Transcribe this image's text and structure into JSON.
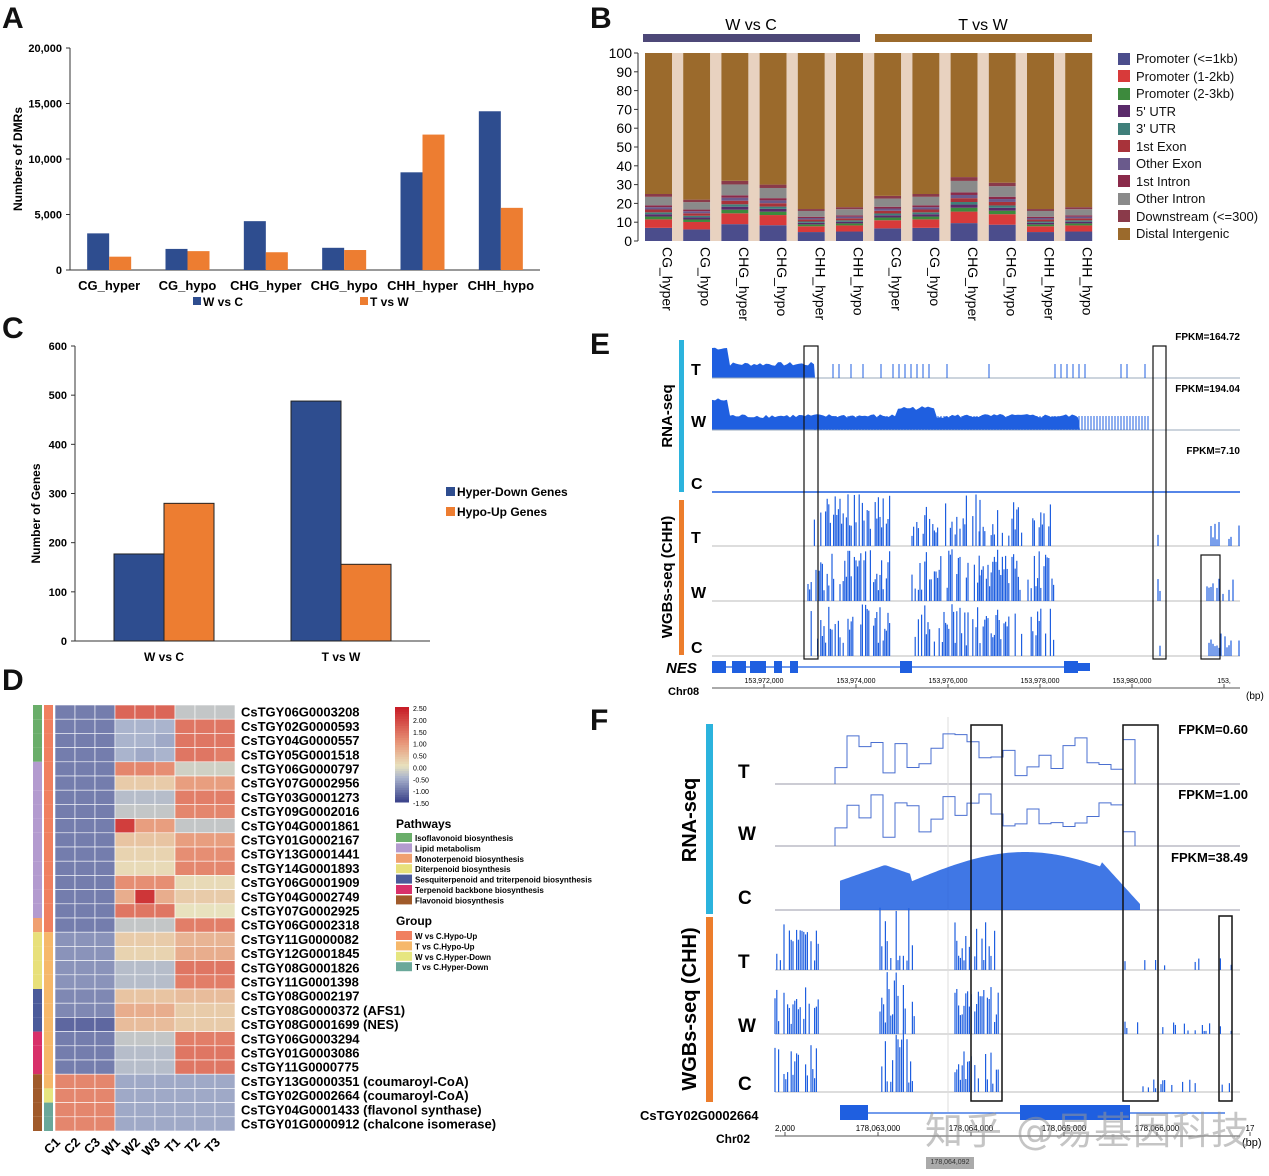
{
  "panels": {
    "A": "A",
    "B": "B",
    "C": "C",
    "D": "D",
    "E": "E",
    "F": "F"
  },
  "colors": {
    "blue": "#2e4d8f",
    "orange": "#ed7d31",
    "track_blue": "#1f5fe0",
    "rna_bar": "#2bb3dd",
    "wgbs_bar": "#ec7d2c"
  },
  "chart_A": {
    "type": "bar",
    "title": "",
    "ylabel": "Numbers of DMRs",
    "ylim": [
      0,
      20000
    ],
    "yticks": [
      "0",
      "5,000",
      "10,000",
      "15,000",
      "20,000"
    ],
    "categories": [
      "CG_hyper",
      "CG_hypo",
      "CHG_hyper",
      "CHG_hypo",
      "CHH_hyper",
      "CHH_hypo"
    ],
    "series": [
      {
        "name": "W vs C",
        "values": [
          3300,
          1900,
          4400,
          2000,
          8800,
          14300
        ]
      },
      {
        "name": "T vs W",
        "values": [
          1200,
          1700,
          1600,
          1800,
          12200,
          5600
        ]
      }
    ]
  },
  "chart_B": {
    "type": "bar",
    "subtype": "stacked-percent",
    "groups": [
      "W vs C",
      "T vs W"
    ],
    "yticks": [
      "0",
      "10",
      "20",
      "30",
      "40",
      "50",
      "60",
      "70",
      "80",
      "90",
      "100"
    ],
    "categories": [
      "CG_hyper",
      "CG_hypo",
      "CHG_hyper",
      "CHG_hypo",
      "CHH_hyper",
      "CHH_hypo",
      "CG_hyper",
      "CG_hypo",
      "CHG_hyper",
      "CHG_hypo",
      "CHH_hyper",
      "CHH_hypo"
    ],
    "legend": [
      {
        "name": "Promoter (<=1kb)",
        "color": "#4b4d8c"
      },
      {
        "name": "Promoter (1-2kb)",
        "color": "#d83a3a"
      },
      {
        "name": "Promoter (2-3kb)",
        "color": "#3d8a3d"
      },
      {
        "name": "5' UTR",
        "color": "#5a2a6a"
      },
      {
        "name": "3' UTR",
        "color": "#3f7f7a"
      },
      {
        "name": "1st Exon",
        "color": "#a8333a"
      },
      {
        "name": "Other Exon",
        "color": "#6a5a8c"
      },
      {
        "name": "1st Intron",
        "color": "#8a2a4a"
      },
      {
        "name": "Other Intron",
        "color": "#8a8a8a"
      },
      {
        "name": "Downstream (<=300)",
        "color": "#8a3a4a"
      },
      {
        "name": "Distal Intergenic",
        "color": "#9b6a2c"
      }
    ],
    "distal_intergenic_percent": [
      75,
      78,
      68,
      70,
      83,
      82,
      76,
      75,
      66,
      69,
      83,
      82
    ]
  },
  "chart_C": {
    "type": "bar",
    "ylabel": "Number of Genes",
    "ylim": [
      0,
      600
    ],
    "yticks": [
      "0",
      "100",
      "200",
      "300",
      "400",
      "500",
      "600"
    ],
    "categories": [
      "W vs C",
      "T vs W"
    ],
    "series": [
      {
        "name": "Hyper-Down Genes",
        "values": [
          177,
          488
        ]
      },
      {
        "name": "Hypo-Up Genes",
        "values": [
          280,
          156
        ]
      }
    ]
  },
  "chart_D": {
    "type": "heatmap",
    "columns": [
      "C1",
      "C2",
      "C3",
      "W1",
      "W2",
      "W3",
      "T1",
      "T2",
      "T3"
    ],
    "colorbar": [
      "2.50",
      "2.00",
      "1.50",
      "1.00",
      "0.50",
      "0.00",
      "-0.50",
      "-1.00",
      "-1.50"
    ],
    "rows": [
      "CsTGY06G0003208",
      "CsTGY02G0000593",
      "CsTGY04G0000557",
      "CsTGY05G0001518",
      "CsTGY06G0000797",
      "CsTGY07G0002956",
      "CsTGY03G0001273",
      "CsTGY09G0002016",
      "CsTGY04G0001861",
      "CsTGY01G0002167",
      "CsTGY13G0001441",
      "CsTGY14G0001893",
      "CsTGY06G0001909",
      "CsTGY04G0002749",
      "CsTGY07G0002925",
      "CsTGY06G0002318",
      "CsTGY11G0000082",
      "CsTGY12G0001845",
      "CsTGY08G0001826",
      "CsTGY11G0001398",
      "CsTGY08G0002197",
      "CsTGY08G0000372 (AFS1)",
      "CsTGY08G0001699 (NES)",
      "CsTGY06G0003294",
      "CsTGY01G0003086",
      "CsTGY11G0000775",
      "CsTGY13G0000351 (coumaroyl-CoA)",
      "CsTGY02G0002664 (coumaroyl-CoA)",
      "CsTGY04G0001433 (flavonol synthase)",
      "CsTGY01G0000912 (chalcone isomerase)"
    ],
    "values": [
      [
        -1,
        -1,
        -1,
        1.6,
        1.6,
        1.6,
        -0.3,
        -0.3,
        -0.3
      ],
      [
        -1,
        -1,
        -1,
        -0.5,
        -0.5,
        -0.5,
        1.4,
        1.4,
        1.4
      ],
      [
        -1,
        -1,
        -1,
        -0.5,
        -0.5,
        -0.6,
        1.4,
        1.4,
        1.4
      ],
      [
        -1,
        -1,
        -1,
        -0.5,
        -0.6,
        -0.5,
        1.4,
        1.4,
        1.3
      ],
      [
        -1,
        -1,
        -1,
        1.2,
        1.2,
        1.1,
        -0.2,
        -0.2,
        -0.2
      ],
      [
        -1,
        -1,
        -1,
        0.3,
        0.3,
        0.3,
        0.9,
        0.9,
        0.9
      ],
      [
        -1,
        -1,
        -1,
        -0.4,
        -0.4,
        -0.4,
        1.3,
        1.3,
        1.3
      ],
      [
        -1,
        -1,
        -1,
        -0.3,
        -0.3,
        -0.3,
        1.2,
        1.2,
        1.2
      ],
      [
        -1,
        -1,
        -1,
        2.1,
        0.9,
        0.9,
        -0.3,
        -0.3,
        -0.3
      ],
      [
        -1,
        -1,
        -1,
        0.4,
        0.4,
        0.4,
        0.9,
        0.9,
        0.9
      ],
      [
        -1,
        -1,
        -1,
        0.2,
        0.2,
        0.2,
        1.1,
        1.1,
        1.1
      ],
      [
        -1,
        -1,
        -1,
        0.1,
        0.1,
        0.1,
        1.2,
        1.2,
        1.2
      ],
      [
        -1,
        -1,
        -1,
        1.1,
        1.1,
        1.1,
        0.1,
        0.1,
        0.1
      ],
      [
        -1,
        -1,
        -1,
        0.7,
        2.2,
        0.7,
        0.3,
        0.3,
        0.3
      ],
      [
        -1,
        -1,
        -1,
        1.4,
        1.4,
        1.4,
        0,
        0,
        0
      ],
      [
        -1,
        -1,
        -1,
        -0.3,
        -0.3,
        -0.3,
        1.3,
        1.3,
        1.3
      ],
      [
        -0.8,
        -0.8,
        -0.8,
        0.3,
        0.3,
        0.3,
        0.6,
        0.6,
        0.6
      ],
      [
        -0.8,
        -0.8,
        -0.8,
        0.2,
        0.2,
        0.2,
        0.7,
        0.7,
        0.7
      ],
      [
        -0.8,
        -0.8,
        -0.8,
        -0.4,
        -0.4,
        -0.4,
        1.4,
        1.4,
        1.4
      ],
      [
        -0.8,
        -0.8,
        -0.8,
        -0.4,
        -0.4,
        -0.4,
        1.3,
        1.3,
        1.3
      ],
      [
        -0.9,
        -0.9,
        -0.9,
        0.4,
        0.4,
        0.4,
        0.5,
        0.5,
        0.5
      ],
      [
        -0.9,
        -0.9,
        -0.9,
        0.7,
        0.7,
        0.7,
        0.3,
        0.3,
        0.3
      ],
      [
        -1.2,
        -1.2,
        -1.2,
        0.5,
        0.5,
        0.5,
        0.3,
        0.3,
        0.3
      ],
      [
        -1,
        -1,
        -1,
        -0.3,
        -0.3,
        -0.3,
        1.3,
        1.3,
        1.3
      ],
      [
        -1,
        -1,
        -1,
        -0.4,
        -0.4,
        -0.4,
        1.4,
        1.4,
        1.4
      ],
      [
        -1,
        -1,
        -1,
        -0.4,
        -0.4,
        -0.4,
        1.4,
        1.4,
        1.4
      ],
      [
        1.2,
        1.2,
        1.2,
        -0.6,
        -0.6,
        -0.6,
        -0.6,
        -0.6,
        -0.6
      ],
      [
        1.2,
        1.2,
        1.2,
        -0.6,
        -0.6,
        -0.6,
        -0.6,
        -0.6,
        -0.6
      ],
      [
        1.2,
        1.2,
        1.2,
        -0.6,
        -0.6,
        -0.6,
        -0.6,
        -0.6,
        -0.6
      ],
      [
        1.2,
        1.2,
        1.2,
        -0.6,
        -0.6,
        -0.6,
        -0.6,
        -0.6,
        -0.6
      ]
    ],
    "pathway_title": "Pathways",
    "pathways": [
      {
        "name": "Isoflavonoid biosynthesis",
        "color": "#6aae6a"
      },
      {
        "name": "Lipid metabolism",
        "color": "#b39bcf"
      },
      {
        "name": "Monoterpenoid biosynthesis",
        "color": "#f0a070"
      },
      {
        "name": "Diterpenoid biosynthesis",
        "color": "#e8e07a"
      },
      {
        "name": "Sesquiterpenoid and triterpenoid biosynthesis",
        "color": "#4a5a9a"
      },
      {
        "name": "Terpenoid backbone biosynthesis",
        "color": "#d8306a"
      },
      {
        "name": "Flavonoid biosynthesis",
        "color": "#a05a2a"
      }
    ],
    "group_title": "Group",
    "groups": [
      {
        "name": "W vs C.Hypo-Up",
        "color": "#f08060"
      },
      {
        "name": "T vs C.Hypo-Up",
        "color": "#f6b86a"
      },
      {
        "name": "W vs C.Hyper-Down",
        "color": "#e6e680"
      },
      {
        "name": "T vs C.Hyper-Down",
        "color": "#6aa89a"
      }
    ]
  },
  "panel_E": {
    "rna_label": "RNA-seq",
    "wgbs_label": "WGBs-seq (CHH)",
    "samples": [
      "T",
      "W",
      "C"
    ],
    "fpkm": [
      "FPKM=164.72",
      "FPKM=194.04",
      "FPKM=7.10"
    ],
    "gene": "NES",
    "chrom": "Chr08",
    "ticks": [
      "153,972,000",
      "153,974,000",
      "153,976,000",
      "153,978,000",
      "153,980,000",
      "153,"
    ],
    "unit": "(bp)"
  },
  "panel_F": {
    "rna_label": "RNA-seq",
    "wgbs_label": "WGBs-seq (CHH)",
    "samples": [
      "T",
      "W",
      "C"
    ],
    "fpkm": [
      "FPKM=0.60",
      "FPKM=1.00",
      "FPKM=38.49"
    ],
    "gene": "CsTGY02G0002664",
    "chrom": "Chr02",
    "ticks": [
      "2,000",
      "178,063,000",
      "178,064,000",
      "178,065,000",
      "178,066,000",
      "17"
    ],
    "unit": "(bp)",
    "position_box": "178,064,092"
  },
  "watermark": "知乎 @易基因科技"
}
